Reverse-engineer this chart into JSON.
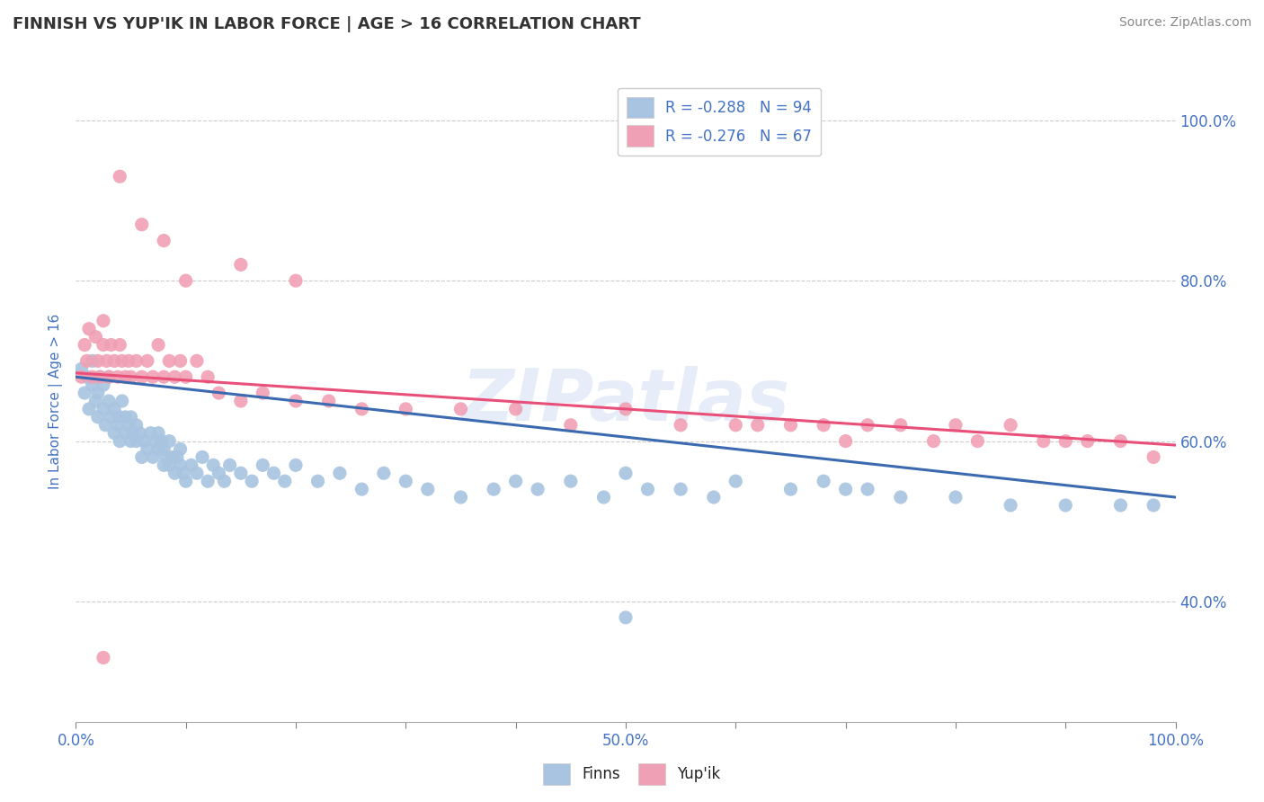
{
  "title": "FINNISH VS YUP'IK IN LABOR FORCE | AGE > 16 CORRELATION CHART",
  "source_text": "Source: ZipAtlas.com",
  "ylabel": "In Labor Force | Age > 16",
  "xlim": [
    0.0,
    1.0
  ],
  "ylim": [
    0.25,
    1.05
  ],
  "y_ticks": [
    0.4,
    0.6,
    0.8,
    1.0
  ],
  "y_tick_labels": [
    "40.0%",
    "60.0%",
    "80.0%",
    "100.0%"
  ],
  "title_color": "#3d5a8a",
  "axis_color": "#4472c4",
  "grid_color": "#cccccc",
  "finn_color": "#a8c4e0",
  "yupik_color": "#f0a0b4",
  "finn_line_color": "#3c6ab0",
  "yupik_line_color": "#e8507a",
  "legend_finn_label": "R = -0.288   N = 94",
  "legend_yupik_label": "R = -0.276   N = 67",
  "watermark": "ZIPatlas",
  "finn_slope": -0.15,
  "finn_intercept": 0.68,
  "yupik_slope": -0.09,
  "yupik_intercept": 0.685,
  "finns_x": [
    0.005,
    0.008,
    0.01,
    0.012,
    0.015,
    0.015,
    0.018,
    0.02,
    0.02,
    0.022,
    0.025,
    0.025,
    0.027,
    0.03,
    0.03,
    0.032,
    0.035,
    0.035,
    0.038,
    0.04,
    0.04,
    0.042,
    0.045,
    0.045,
    0.048,
    0.05,
    0.05,
    0.052,
    0.055,
    0.055,
    0.058,
    0.06,
    0.062,
    0.065,
    0.068,
    0.07,
    0.072,
    0.075,
    0.075,
    0.078,
    0.08,
    0.08,
    0.082,
    0.085,
    0.085,
    0.088,
    0.09,
    0.092,
    0.095,
    0.095,
    0.098,
    0.1,
    0.105,
    0.11,
    0.115,
    0.12,
    0.125,
    0.13,
    0.135,
    0.14,
    0.15,
    0.16,
    0.17,
    0.18,
    0.19,
    0.2,
    0.22,
    0.24,
    0.26,
    0.28,
    0.3,
    0.32,
    0.35,
    0.38,
    0.4,
    0.42,
    0.45,
    0.48,
    0.5,
    0.52,
    0.55,
    0.58,
    0.6,
    0.65,
    0.68,
    0.7,
    0.72,
    0.75,
    0.8,
    0.85,
    0.9,
    0.95,
    0.98,
    0.5
  ],
  "finns_y": [
    0.69,
    0.66,
    0.68,
    0.64,
    0.67,
    0.7,
    0.65,
    0.63,
    0.66,
    0.68,
    0.64,
    0.67,
    0.62,
    0.65,
    0.68,
    0.63,
    0.61,
    0.64,
    0.62,
    0.6,
    0.63,
    0.65,
    0.61,
    0.63,
    0.62,
    0.6,
    0.63,
    0.61,
    0.6,
    0.62,
    0.61,
    0.58,
    0.6,
    0.59,
    0.61,
    0.58,
    0.6,
    0.59,
    0.61,
    0.6,
    0.57,
    0.59,
    0.58,
    0.57,
    0.6,
    0.58,
    0.56,
    0.58,
    0.57,
    0.59,
    0.56,
    0.55,
    0.57,
    0.56,
    0.58,
    0.55,
    0.57,
    0.56,
    0.55,
    0.57,
    0.56,
    0.55,
    0.57,
    0.56,
    0.55,
    0.57,
    0.55,
    0.56,
    0.54,
    0.56,
    0.55,
    0.54,
    0.53,
    0.54,
    0.55,
    0.54,
    0.55,
    0.53,
    0.56,
    0.54,
    0.54,
    0.53,
    0.55,
    0.54,
    0.55,
    0.54,
    0.54,
    0.53,
    0.53,
    0.52,
    0.52,
    0.52,
    0.52,
    0.38
  ],
  "yupiks_x": [
    0.005,
    0.008,
    0.01,
    0.012,
    0.015,
    0.018,
    0.02,
    0.022,
    0.025,
    0.025,
    0.028,
    0.03,
    0.032,
    0.035,
    0.038,
    0.04,
    0.042,
    0.045,
    0.048,
    0.05,
    0.055,
    0.06,
    0.065,
    0.07,
    0.075,
    0.08,
    0.085,
    0.09,
    0.095,
    0.1,
    0.11,
    0.12,
    0.13,
    0.15,
    0.17,
    0.2,
    0.23,
    0.26,
    0.3,
    0.35,
    0.4,
    0.45,
    0.5,
    0.55,
    0.6,
    0.62,
    0.65,
    0.68,
    0.7,
    0.72,
    0.75,
    0.78,
    0.8,
    0.82,
    0.85,
    0.88,
    0.9,
    0.92,
    0.95,
    0.98,
    0.1,
    0.15,
    0.2,
    0.08,
    0.04,
    0.06,
    0.025
  ],
  "yupiks_y": [
    0.68,
    0.72,
    0.7,
    0.74,
    0.68,
    0.73,
    0.7,
    0.68,
    0.72,
    0.75,
    0.7,
    0.68,
    0.72,
    0.7,
    0.68,
    0.72,
    0.7,
    0.68,
    0.7,
    0.68,
    0.7,
    0.68,
    0.7,
    0.68,
    0.72,
    0.68,
    0.7,
    0.68,
    0.7,
    0.68,
    0.7,
    0.68,
    0.66,
    0.65,
    0.66,
    0.65,
    0.65,
    0.64,
    0.64,
    0.64,
    0.64,
    0.62,
    0.64,
    0.62,
    0.62,
    0.62,
    0.62,
    0.62,
    0.6,
    0.62,
    0.62,
    0.6,
    0.62,
    0.6,
    0.62,
    0.6,
    0.6,
    0.6,
    0.6,
    0.58,
    0.8,
    0.82,
    0.8,
    0.85,
    0.93,
    0.87,
    0.33
  ]
}
